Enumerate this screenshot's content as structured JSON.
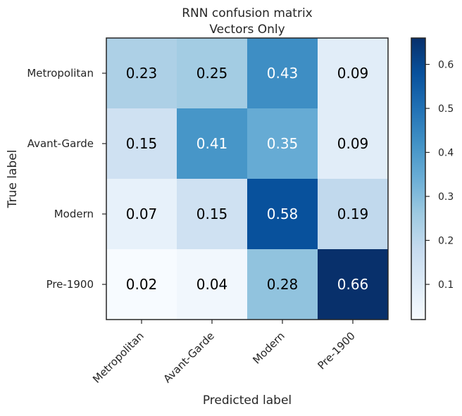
{
  "chart_data": {
    "type": "heatmap",
    "title": "RNN confusion matrix",
    "subtitle": "Vectors Only",
    "xlabel": "Predicted label",
    "ylabel": "True label",
    "x_categories": [
      "Metropolitan",
      "Avant-Garde",
      "Modern",
      "Pre-1900"
    ],
    "y_categories": [
      "Metropolitan",
      "Avant-Garde",
      "Modern",
      "Pre-1900"
    ],
    "values": [
      [
        0.23,
        0.25,
        0.43,
        0.09
      ],
      [
        0.15,
        0.41,
        0.35,
        0.09
      ],
      [
        0.07,
        0.15,
        0.58,
        0.19
      ],
      [
        0.02,
        0.04,
        0.28,
        0.66
      ]
    ],
    "value_labels": [
      [
        "0.23",
        "0.25",
        "0.43",
        "0.09"
      ],
      [
        "0.15",
        "0.41",
        "0.35",
        "0.09"
      ],
      [
        "0.07",
        "0.15",
        "0.58",
        "0.19"
      ],
      [
        "0.02",
        "0.04",
        "0.28",
        "0.66"
      ]
    ],
    "colormap": "Blues",
    "colorbar": {
      "range": [
        0.02,
        0.66
      ],
      "ticks": [
        0.1,
        0.2,
        0.3,
        0.4,
        0.5,
        0.6
      ],
      "tick_labels": [
        "0.1",
        "0.2",
        "0.3",
        "0.4",
        "0.5",
        "0.6"
      ]
    },
    "text_colors": {
      "dark": "#000000",
      "light": "#ffffff"
    },
    "text_threshold": 0.33
  }
}
